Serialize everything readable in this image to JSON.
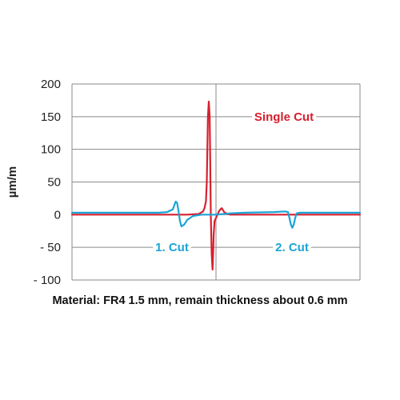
{
  "chart_data": {
    "type": "line",
    "title": "",
    "xlabel": "",
    "ylabel": "µm/m",
    "ylim": [
      -100,
      200
    ],
    "yticks": [
      200,
      150,
      100,
      50,
      0,
      -50,
      -100
    ],
    "ytick_labels": [
      "200",
      "150",
      "100",
      "50",
      "0",
      "- 50",
      "- 100"
    ],
    "xlim": [
      0,
      1
    ],
    "grid": true,
    "legend": "none",
    "series": [
      {
        "color": "#d7202e",
        "x": [
          0,
          0.4,
          0.44,
          0.455,
          0.46,
          0.465,
          0.468,
          0.47,
          0.472,
          0.475,
          0.478,
          0.48,
          0.482,
          0.485,
          0.488,
          0.49,
          0.492,
          0.495,
          0.5,
          0.505,
          0.51,
          0.515,
          0.52,
          0.53,
          0.55,
          1.0
        ],
        "y": [
          0,
          0,
          1,
          5,
          10,
          20,
          50,
          100,
          150,
          173,
          150,
          80,
          0,
          -60,
          -84,
          -60,
          -30,
          -10,
          -5,
          0,
          5,
          8,
          10,
          3,
          0,
          0
        ]
      },
      {
        "color": "#1aa3d6",
        "x": [
          0,
          0.3,
          0.33,
          0.35,
          0.36,
          0.365,
          0.37,
          0.375,
          0.38,
          0.39,
          0.4,
          0.42,
          0.45,
          0.5,
          0.55,
          0.6,
          0.7,
          0.74,
          0.75,
          0.755,
          0.76,
          0.765,
          0.77,
          0.775,
          0.78,
          0.79,
          0.8,
          1.0
        ],
        "y": [
          3,
          3,
          4,
          8,
          20,
          18,
          5,
          -10,
          -18,
          -15,
          -8,
          -2,
          0,
          0,
          2,
          3,
          4,
          5,
          4,
          -5,
          -15,
          -20,
          -15,
          -5,
          2,
          3,
          3,
          3
        ]
      }
    ],
    "annotations": [
      {
        "text": "Single Cut",
        "color": "#d7202e"
      },
      {
        "text": "1. Cut",
        "color": "#1aa3d6"
      },
      {
        "text": "2. Cut",
        "color": "#1aa3d6"
      }
    ]
  },
  "caption": "Material: FR4 1.5 mm, remain thickness about 0.6 mm"
}
